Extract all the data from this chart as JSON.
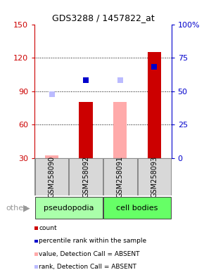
{
  "title": "GDS3288 / 1457822_at",
  "categories": [
    "GSM258090",
    "GSM258092",
    "GSM258091",
    "GSM258093"
  ],
  "bar_values": [
    32,
    80,
    80,
    125
  ],
  "bar_colors": [
    "#ffaaaa",
    "#cc0000",
    "#ffaaaa",
    "#cc0000"
  ],
  "rank_values": [
    87,
    100,
    100,
    112
  ],
  "rank_colors": [
    "#bbbbff",
    "#0000cc",
    "#bbbbff",
    "#0000cc"
  ],
  "ylim_left": [
    30,
    150
  ],
  "ylim_right": [
    0,
    100
  ],
  "yticks_left": [
    30,
    60,
    90,
    120,
    150
  ],
  "yticks_right": [
    0,
    25,
    50,
    75,
    100
  ],
  "group_labels": [
    "pseudopodia",
    "cell bodies"
  ],
  "group_colors_light": "#aaffaa",
  "group_colors_bright": "#66ff66",
  "group_ranges": [
    [
      0,
      2
    ],
    [
      2,
      4
    ]
  ],
  "legend_items": [
    {
      "label": "count",
      "color": "#cc0000"
    },
    {
      "label": "percentile rank within the sample",
      "color": "#0000cc"
    },
    {
      "label": "value, Detection Call = ABSENT",
      "color": "#ffaaaa"
    },
    {
      "label": "rank, Detection Call = ABSENT",
      "color": "#bbbbff"
    }
  ],
  "bg_color": "#ffffff",
  "left_axis_color": "#cc0000",
  "right_axis_color": "#0000cc",
  "bar_width": 0.4,
  "rank_square_size": 40,
  "other_label": "other"
}
